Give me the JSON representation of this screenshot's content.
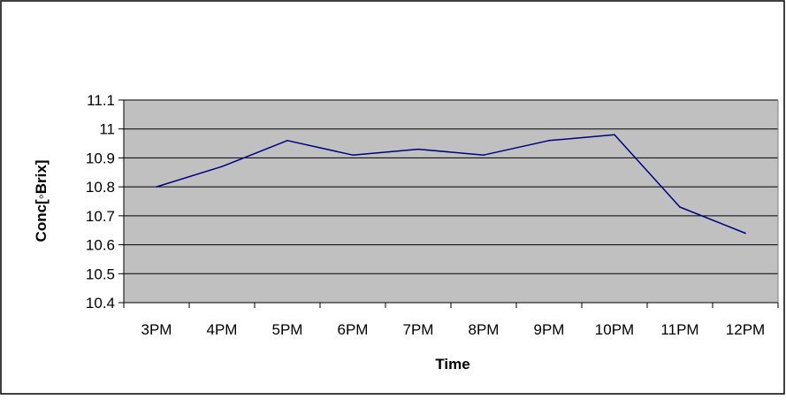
{
  "chart_data": {
    "type": "line",
    "title": "",
    "xlabel": "Time",
    "ylabel": "Conc[◦Brix]",
    "categories": [
      "3PM",
      "4PM",
      "5PM",
      "6PM",
      "7PM",
      "8PM",
      "9PM",
      "10PM",
      "11PM",
      "12PM"
    ],
    "series": [
      {
        "values": [
          10.8,
          10.87,
          10.96,
          10.91,
          10.93,
          10.91,
          10.96,
          10.98,
          10.73,
          10.64
        ]
      }
    ],
    "ylim": [
      10.4,
      11.1
    ],
    "yticks": [
      "10.4",
      "10.5",
      "10.6",
      "10.7",
      "10.8",
      "10.9",
      "11",
      "11.1"
    ],
    "grid": true,
    "legend": "none",
    "colors": {
      "plot_background": "#c0c0c0",
      "line": "#000080",
      "gridline": "#000000",
      "frame": "#000000"
    }
  }
}
